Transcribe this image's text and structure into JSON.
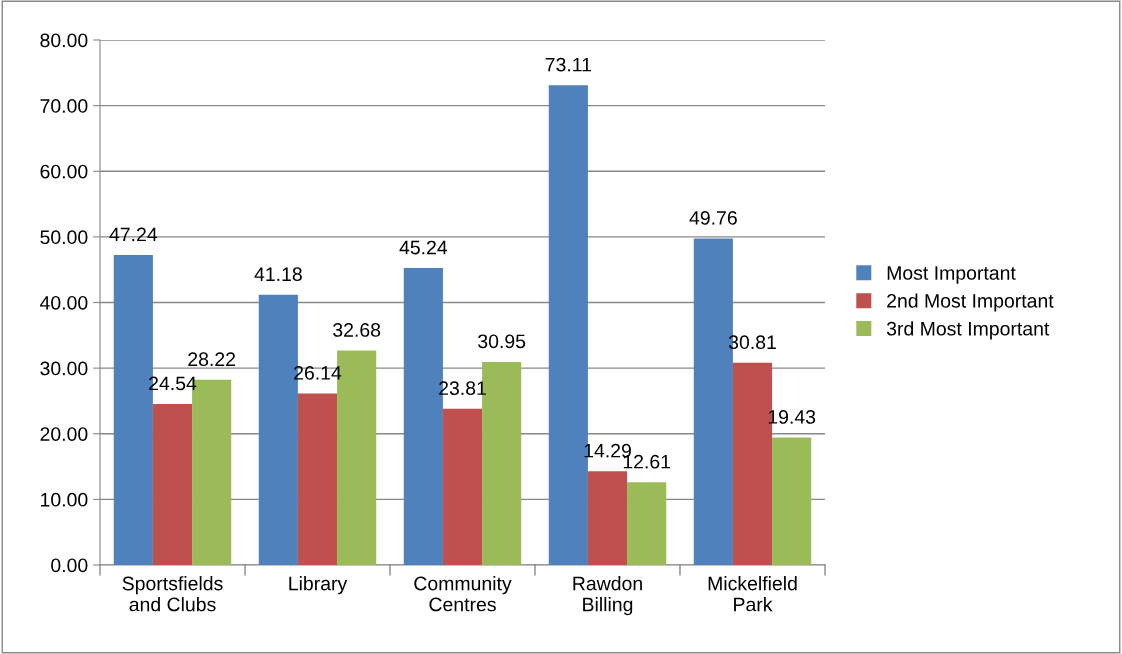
{
  "chart_data": {
    "type": "bar",
    "categories": [
      "Sportsfields\nand Clubs",
      "Library",
      "Community\nCentres",
      "Rawdon\nBilling",
      "Mickelfield\nPark"
    ],
    "series": [
      {
        "name": "Most Important",
        "color": "#4f81bd",
        "values": [
          47.24,
          41.18,
          45.24,
          73.11,
          49.76
        ]
      },
      {
        "name": "2nd Most Important",
        "color": "#c0504d",
        "values": [
          24.54,
          26.14,
          23.81,
          14.29,
          30.81
        ]
      },
      {
        "name": "3rd Most Important",
        "color": "#9bbb59",
        "values": [
          28.22,
          32.68,
          30.95,
          12.61,
          19.43
        ]
      }
    ],
    "ylim": [
      0,
      80
    ],
    "yticks": [
      {
        "value": 0,
        "label": "0.00"
      },
      {
        "value": 10,
        "label": "10.00"
      },
      {
        "value": 20,
        "label": "20.00"
      },
      {
        "value": 30,
        "label": "30.00"
      },
      {
        "value": 40,
        "label": "40.00"
      },
      {
        "value": 50,
        "label": "50.00"
      },
      {
        "value": 60,
        "label": "60.00"
      },
      {
        "value": 70,
        "label": "70.00"
      },
      {
        "value": 80,
        "label": "80.00"
      }
    ],
    "grid": "y",
    "legend": "right",
    "data_labels": true
  }
}
